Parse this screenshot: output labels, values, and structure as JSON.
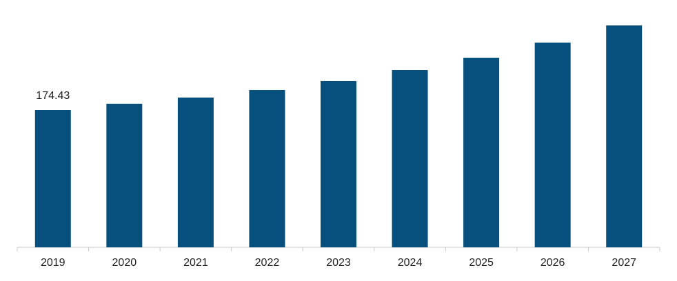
{
  "chart_data": {
    "type": "bar",
    "categories": [
      "2019",
      "2020",
      "2021",
      "2022",
      "2023",
      "2024",
      "2025",
      "2026",
      "2027"
    ],
    "values": [
      174.43,
      182.3,
      190.1,
      199.7,
      211.1,
      225.0,
      240.7,
      259.9,
      281.7
    ],
    "value_labels": [
      "174.43",
      null,
      null,
      null,
      null,
      null,
      null,
      null,
      null
    ],
    "color": "#07507e"
  }
}
